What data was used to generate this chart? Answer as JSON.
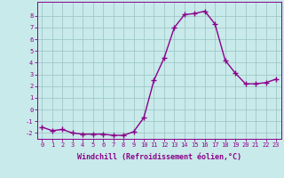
{
  "x": [
    0,
    1,
    2,
    3,
    4,
    5,
    6,
    7,
    8,
    9,
    10,
    11,
    12,
    13,
    14,
    15,
    16,
    17,
    18,
    19,
    20,
    21,
    22,
    23
  ],
  "y": [
    -1.5,
    -1.8,
    -1.7,
    -2.0,
    -2.1,
    -2.1,
    -2.1,
    -2.2,
    -2.2,
    -1.9,
    -0.7,
    2.5,
    4.4,
    7.0,
    8.1,
    8.2,
    8.4,
    7.3,
    4.2,
    3.1,
    2.2,
    2.2,
    2.3,
    2.6
  ],
  "line_color": "#8B008B",
  "marker": "+",
  "marker_size": 4,
  "bg_color": "#c8eaea",
  "grid_color": "#a0c8c8",
  "xlabel": "Windchill (Refroidissement éolien,°C)",
  "ylim": [
    -2.5,
    9.2
  ],
  "xlim": [
    -0.5,
    23.5
  ],
  "yticks": [
    -2,
    -1,
    0,
    1,
    2,
    3,
    4,
    5,
    6,
    7,
    8
  ],
  "xticks": [
    0,
    1,
    2,
    3,
    4,
    5,
    6,
    7,
    8,
    9,
    10,
    11,
    12,
    13,
    14,
    15,
    16,
    17,
    18,
    19,
    20,
    21,
    22,
    23
  ],
  "tick_fontsize": 5.0,
  "xlabel_fontsize": 6.0,
  "line_width": 1.0
}
